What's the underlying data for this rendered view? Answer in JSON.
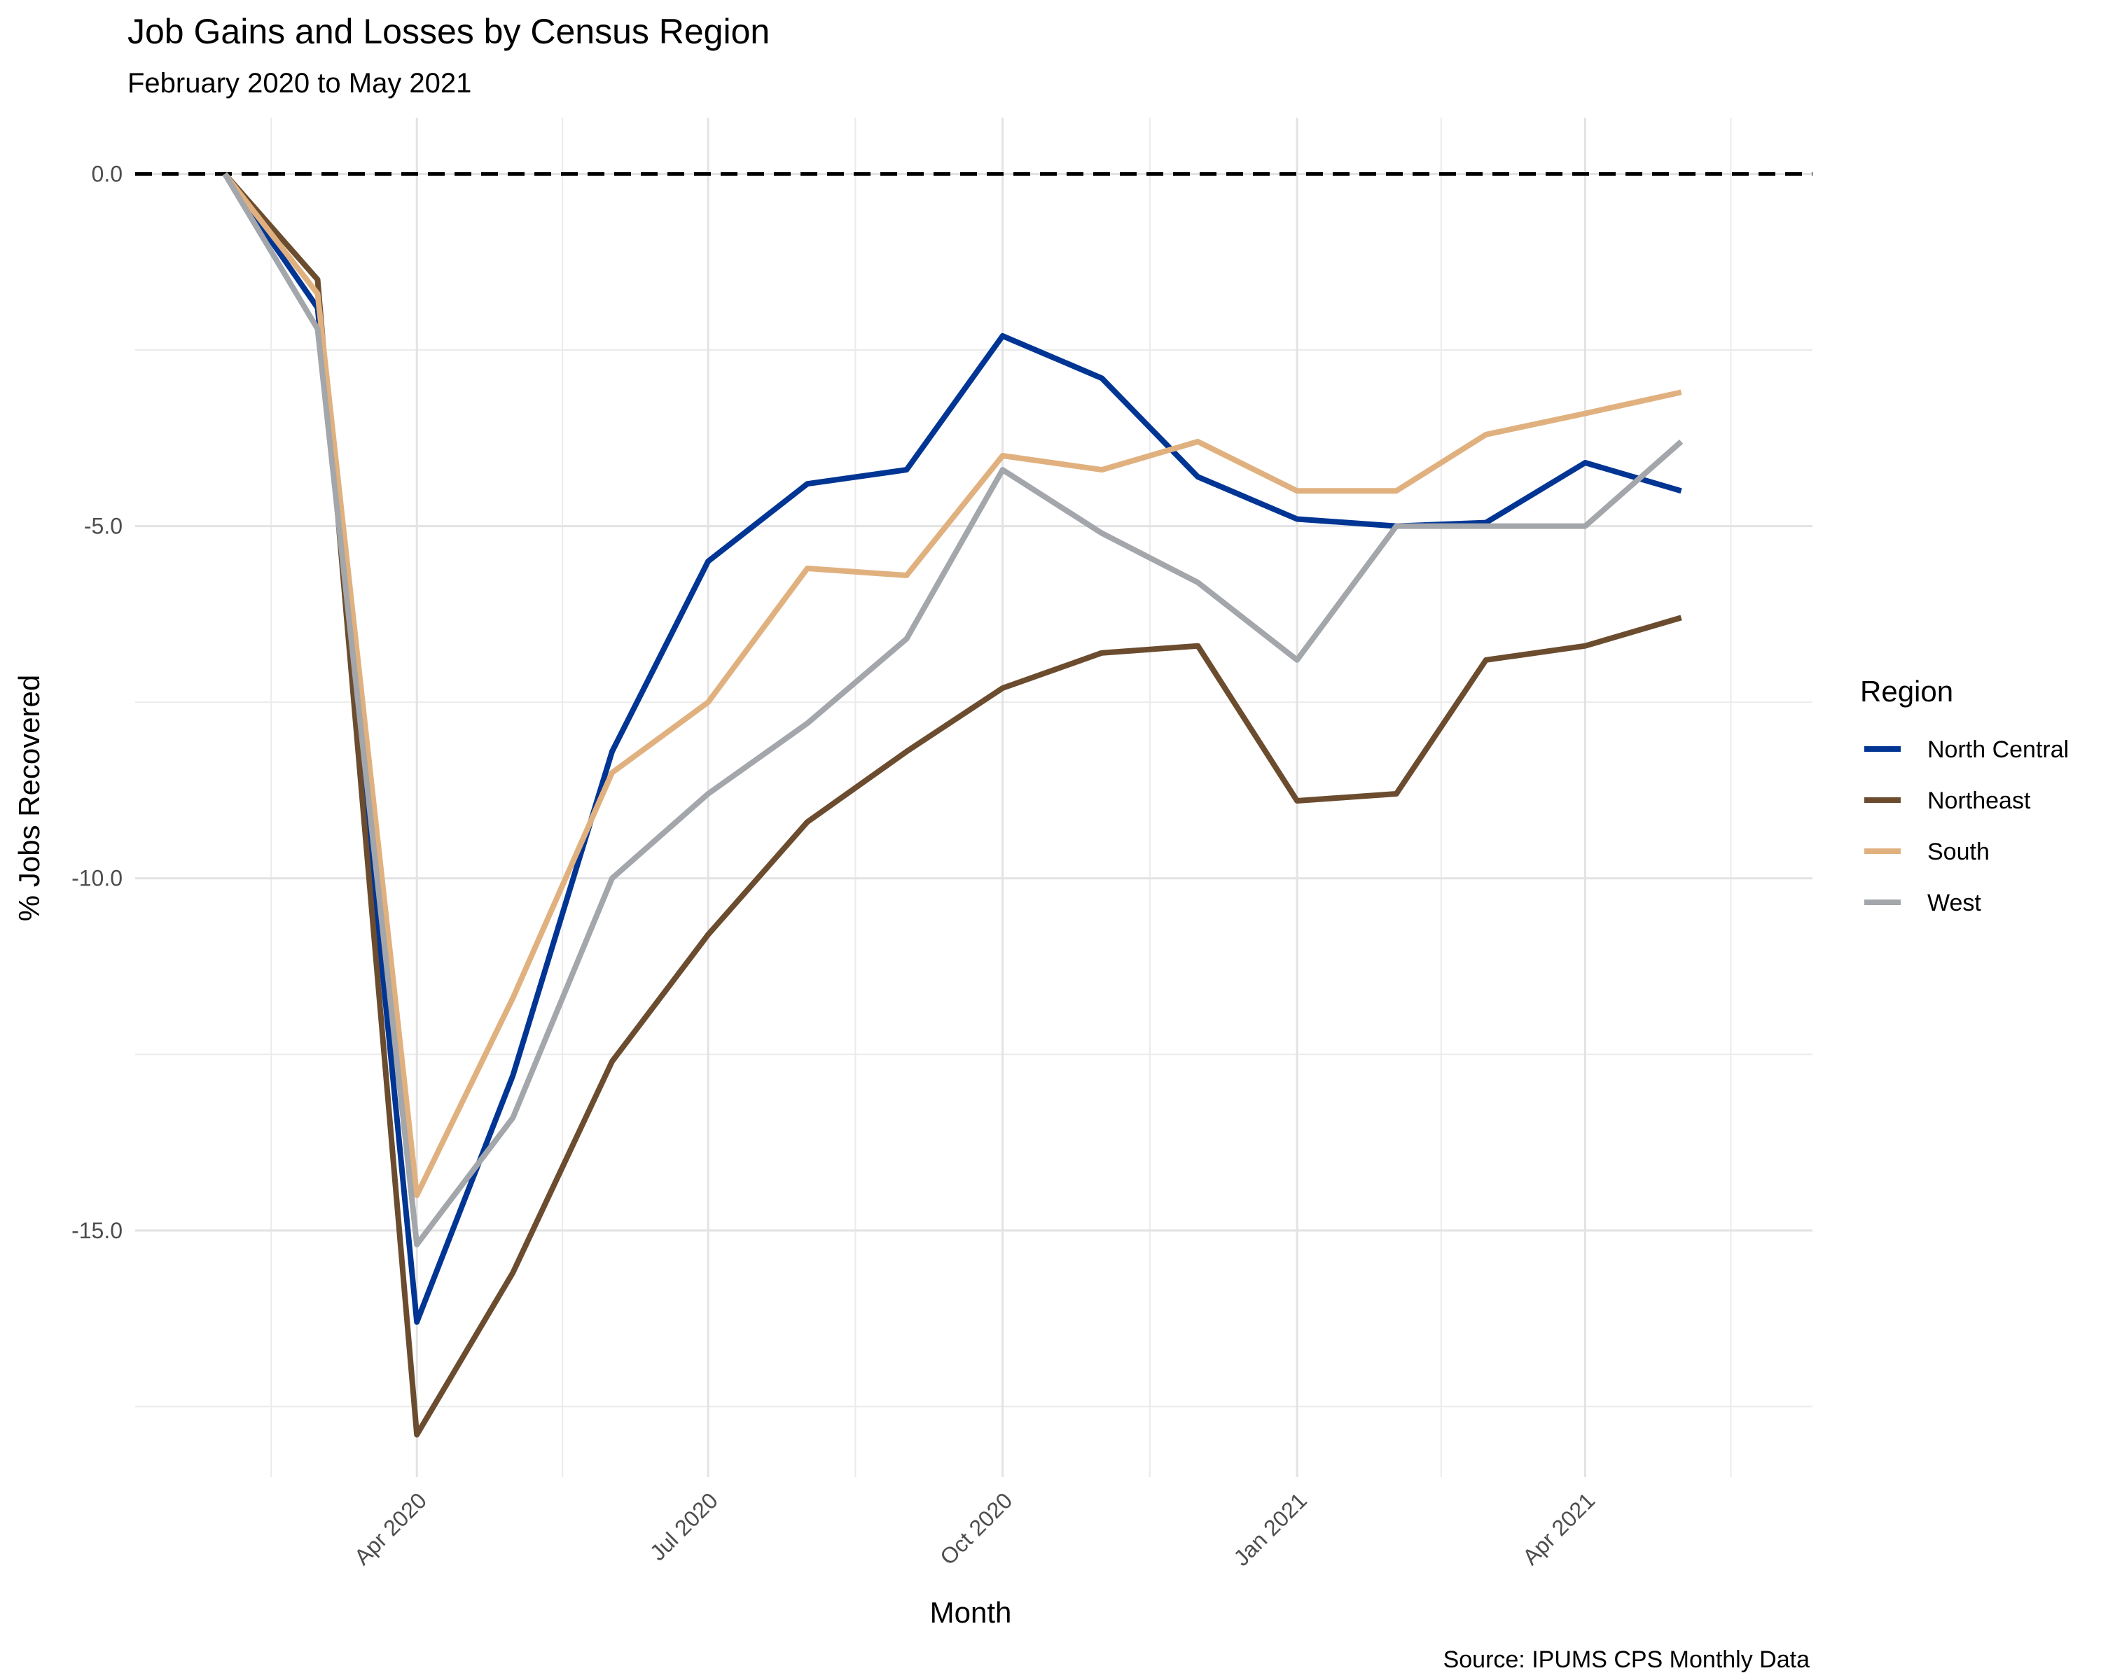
{
  "chart_data": {
    "type": "line",
    "title": "Job Gains and Losses by Census Region",
    "subtitle": "February 2020 to May 2021",
    "xlabel": "Month",
    "ylabel": "% Jobs Recovered",
    "caption": "Source: IPUMS CPS Monthly Data",
    "legend_title": "Region",
    "legend_position": "right",
    "grid": true,
    "reference_line": {
      "y": 0,
      "style": "dashed"
    },
    "x": [
      "2020-02",
      "2020-03",
      "2020-04",
      "2020-05",
      "2020-06",
      "2020-07",
      "2020-08",
      "2020-09",
      "2020-10",
      "2020-11",
      "2020-12",
      "2021-01",
      "2021-02",
      "2021-03",
      "2021-04",
      "2021-05"
    ],
    "xticks": [
      {
        "date": "2020-04",
        "label": "Apr 2020"
      },
      {
        "date": "2020-07",
        "label": "Jul 2020"
      },
      {
        "date": "2020-10",
        "label": "Oct 2020"
      },
      {
        "date": "2021-01",
        "label": "Jan 2021"
      },
      {
        "date": "2021-04",
        "label": "Apr 2021"
      }
    ],
    "yticks": [
      {
        "value": 0,
        "label": "0.0"
      },
      {
        "value": -5,
        "label": "-5.0"
      },
      {
        "value": -10,
        "label": "-10.0"
      },
      {
        "value": -15,
        "label": "-15.0"
      }
    ],
    "ylim": [
      -18.5,
      0.8
    ],
    "xlim": [
      "2020-01-04",
      "2021-06-11"
    ],
    "series": [
      {
        "name": "North Central",
        "color": "#003594",
        "values": [
          0,
          -1.9,
          -16.3,
          -12.8,
          -8.2,
          -5.5,
          -4.4,
          -4.2,
          -2.3,
          -2.9,
          -4.3,
          -4.9,
          -5.0,
          -4.95,
          -4.1,
          -4.5
        ]
      },
      {
        "name": "Northeast",
        "color": "#6b4c2e",
        "values": [
          0,
          -1.5,
          -17.9,
          -15.6,
          -12.6,
          -10.8,
          -9.2,
          -8.2,
          -7.3,
          -6.8,
          -6.7,
          -8.9,
          -8.8,
          -6.9,
          -6.7,
          -6.3
        ]
      },
      {
        "name": "South",
        "color": "#e0b17f",
        "values": [
          0,
          -1.7,
          -14.5,
          -11.7,
          -8.5,
          -7.5,
          -5.6,
          -5.7,
          -4.0,
          -4.2,
          -3.8,
          -4.5,
          -4.5,
          -3.7,
          -3.4,
          -3.1
        ]
      },
      {
        "name": "West",
        "color": "#a3a6aa",
        "values": [
          0,
          -2.2,
          -15.2,
          -13.4,
          -10.0,
          -8.8,
          -7.8,
          -6.6,
          -4.2,
          -5.1,
          -5.8,
          -6.9,
          -5.0,
          -5.0,
          -5.0,
          -3.8
        ]
      }
    ]
  }
}
